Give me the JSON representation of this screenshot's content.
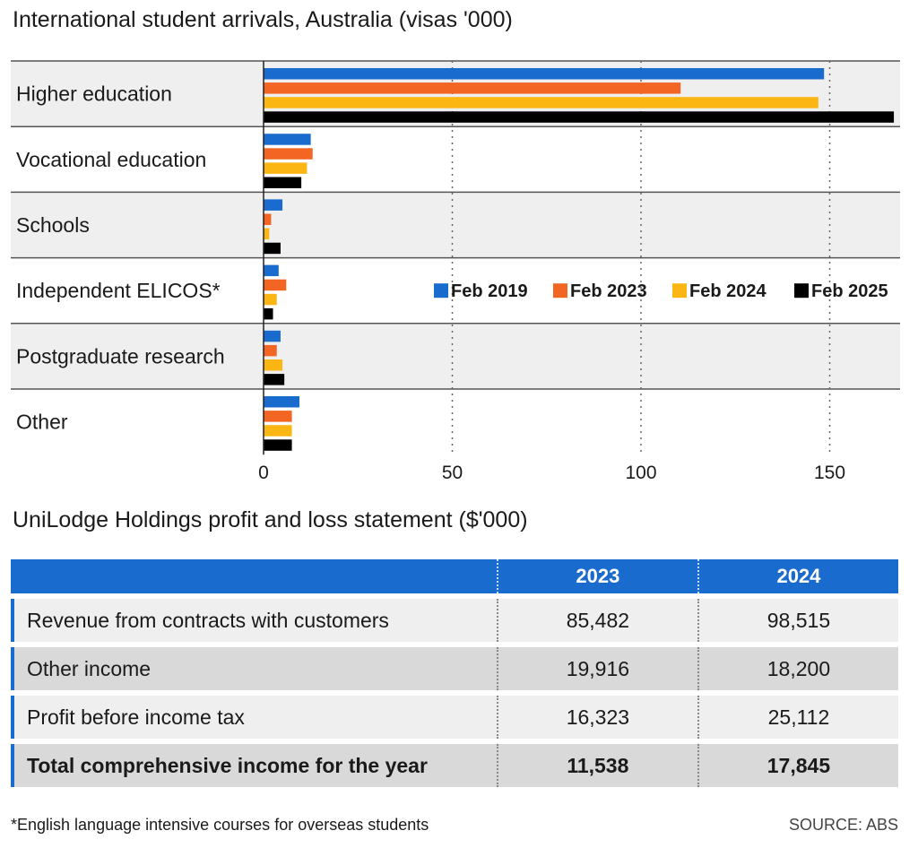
{
  "chart_data": {
    "type": "bar",
    "orientation": "horizontal",
    "title": "International student arrivals, Australia (visas '000)",
    "categories": [
      "Higher education",
      "Vocational education",
      "Schools",
      "Independent ELICOS*",
      "Postgraduate research",
      "Other"
    ],
    "series": [
      {
        "name": "Feb 2019",
        "color": "#1a6bce",
        "values": [
          148.5,
          12.5,
          5.0,
          4.0,
          4.5,
          9.5
        ]
      },
      {
        "name": "Feb 2023",
        "color": "#f26522",
        "values": [
          110.5,
          13.0,
          2.0,
          6.0,
          3.5,
          7.5
        ]
      },
      {
        "name": "Feb 2024",
        "color": "#fbb614",
        "values": [
          147.0,
          11.5,
          1.5,
          3.5,
          5.0,
          7.5
        ]
      },
      {
        "name": "Feb 2025",
        "color": "#000000",
        "values": [
          167.0,
          10.0,
          4.5,
          2.5,
          5.5,
          7.5
        ]
      }
    ],
    "xticks": [
      0,
      50,
      100,
      150
    ],
    "xlim": [
      0,
      168
    ],
    "grid": true,
    "legend": "right"
  },
  "table": {
    "title": "UniLodge Holdings profit and loss statement ($'000)",
    "columns": [
      "2023",
      "2024"
    ],
    "rows": [
      {
        "label": "Revenue from contracts with customers",
        "values": [
          "85,482",
          "98,515"
        ]
      },
      {
        "label": "Other income",
        "values": [
          "19,916",
          "18,200"
        ]
      },
      {
        "label": "Profit before income tax",
        "values": [
          "16,323",
          "25,112"
        ]
      },
      {
        "label": "Total comprehensive income for the year",
        "values": [
          "11,538",
          "17,845"
        ]
      }
    ]
  },
  "footnote": "*English language intensive courses for overseas students",
  "source": "SOURCE: ABS"
}
